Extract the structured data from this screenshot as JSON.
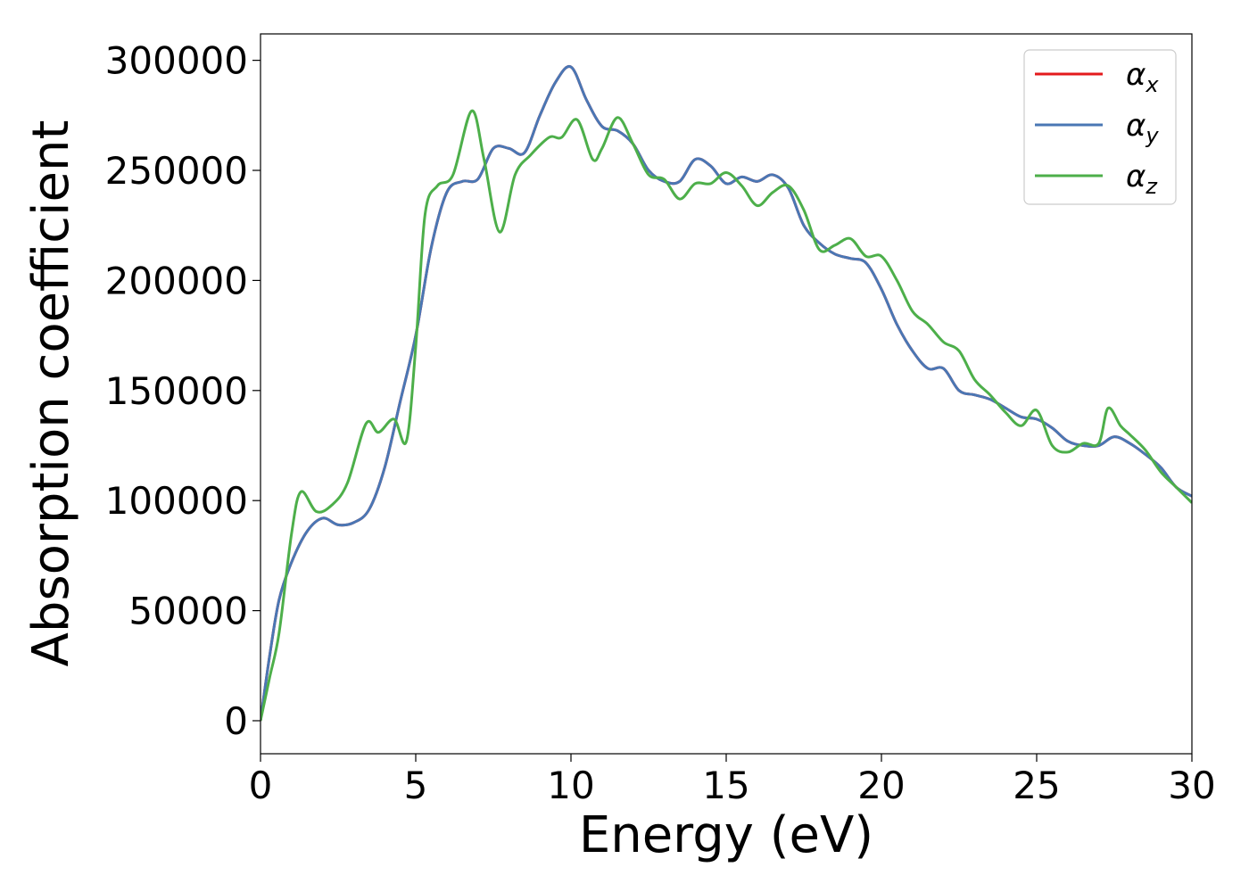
{
  "chart_data": {
    "type": "line",
    "xlabel": "Energy (eV)",
    "ylabel": "Absorption coefficient",
    "xlim": [
      0,
      30
    ],
    "ylim": [
      -15000,
      312000
    ],
    "xticks": [
      0,
      5,
      10,
      15,
      20,
      25,
      30
    ],
    "xtick_labels": [
      "0",
      "5",
      "10",
      "15",
      "20",
      "25",
      "30"
    ],
    "yticks": [
      0,
      50000,
      100000,
      150000,
      200000,
      250000,
      300000
    ],
    "ytick_labels": [
      "0",
      "50000",
      "100000",
      "150000",
      "200000",
      "250000",
      "300000"
    ],
    "grid": false,
    "legend_position": "top-right",
    "series": [
      {
        "name": "α_x",
        "legend_symbol": "α",
        "legend_subscript": "x",
        "color": "#e41a1c",
        "x": [
          0,
          0.3,
          0.6,
          1.0,
          1.5,
          2.0,
          2.5,
          3.0,
          3.5,
          4.0,
          4.5,
          5.0,
          5.5,
          6.0,
          6.5,
          7.0,
          7.5,
          8.0,
          8.5,
          9.0,
          9.5,
          10.0,
          10.5,
          11.0,
          11.5,
          12.0,
          12.5,
          13.0,
          13.5,
          14.0,
          14.5,
          15.0,
          15.5,
          16.0,
          16.5,
          17.0,
          17.5,
          18.0,
          18.5,
          19.0,
          19.5,
          20.0,
          20.5,
          21.0,
          21.5,
          22.0,
          22.5,
          23.0,
          23.5,
          24.0,
          24.5,
          25.0,
          25.5,
          26.0,
          26.5,
          27.0,
          27.5,
          28.0,
          28.5,
          29.0,
          29.5,
          30.0
        ],
        "y": [
          0,
          30000,
          55000,
          72000,
          86000,
          92000,
          89000,
          90000,
          96000,
          115000,
          145000,
          175000,
          215000,
          240000,
          245000,
          246000,
          260000,
          260000,
          258000,
          275000,
          290000,
          297000,
          282000,
          270000,
          268000,
          262000,
          250000,
          245000,
          245000,
          255000,
          252000,
          244000,
          247000,
          245000,
          248000,
          242000,
          225000,
          217000,
          212000,
          210000,
          208000,
          196000,
          180000,
          168000,
          160000,
          160000,
          150000,
          148000,
          146000,
          142000,
          138000,
          137000,
          133000,
          127000,
          125000,
          125000,
          129000,
          126000,
          121000,
          115000,
          106000,
          102000
        ]
      },
      {
        "name": "α_y",
        "legend_symbol": "α",
        "legend_subscript": "y",
        "color": "#4a77b4",
        "x": [
          0,
          0.3,
          0.6,
          1.0,
          1.5,
          2.0,
          2.5,
          3.0,
          3.5,
          4.0,
          4.5,
          5.0,
          5.5,
          6.0,
          6.5,
          7.0,
          7.5,
          8.0,
          8.5,
          9.0,
          9.5,
          10.0,
          10.5,
          11.0,
          11.5,
          12.0,
          12.5,
          13.0,
          13.5,
          14.0,
          14.5,
          15.0,
          15.5,
          16.0,
          16.5,
          17.0,
          17.5,
          18.0,
          18.5,
          19.0,
          19.5,
          20.0,
          20.5,
          21.0,
          21.5,
          22.0,
          22.5,
          23.0,
          23.5,
          24.0,
          24.5,
          25.0,
          25.5,
          26.0,
          26.5,
          27.0,
          27.5,
          28.0,
          28.5,
          29.0,
          29.5,
          30.0
        ],
        "y": [
          0,
          30000,
          55000,
          72000,
          86000,
          92000,
          89000,
          90000,
          96000,
          115000,
          145000,
          175000,
          215000,
          240000,
          245000,
          246000,
          260000,
          260000,
          258000,
          275000,
          290000,
          297000,
          282000,
          270000,
          268000,
          262000,
          250000,
          245000,
          245000,
          255000,
          252000,
          244000,
          247000,
          245000,
          248000,
          242000,
          225000,
          217000,
          212000,
          210000,
          208000,
          196000,
          180000,
          168000,
          160000,
          160000,
          150000,
          148000,
          146000,
          142000,
          138000,
          137000,
          133000,
          127000,
          125000,
          125000,
          129000,
          126000,
          121000,
          115000,
          106000,
          102000
        ]
      },
      {
        "name": "α_z",
        "legend_symbol": "α",
        "legend_subscript": "z",
        "color": "#4daf4a",
        "x": [
          0,
          0.3,
          0.6,
          1.0,
          1.3,
          1.8,
          2.3,
          2.8,
          3.4,
          3.8,
          4.3,
          4.7,
          5.0,
          5.3,
          5.7,
          6.2,
          6.8,
          7.2,
          7.7,
          8.2,
          8.7,
          9.3,
          9.7,
          10.2,
          10.7,
          11.0,
          11.5,
          12.0,
          12.5,
          13.0,
          13.5,
          14.0,
          14.5,
          15.0,
          15.5,
          16.0,
          16.5,
          17.0,
          17.5,
          18.0,
          18.5,
          19.0,
          19.5,
          20.0,
          20.5,
          21.0,
          21.5,
          22.0,
          22.5,
          23.0,
          23.5,
          24.0,
          24.5,
          25.0,
          25.5,
          26.0,
          26.5,
          27.0,
          27.3,
          27.7,
          28.0,
          28.5,
          29.0,
          29.5,
          30.0
        ],
        "y": [
          0,
          20000,
          40000,
          85000,
          104000,
          95000,
          98000,
          108000,
          135000,
          131000,
          137000,
          127000,
          170000,
          230000,
          243000,
          248000,
          277000,
          255000,
          222000,
          248000,
          257000,
          265000,
          265000,
          273000,
          255000,
          260000,
          274000,
          262000,
          248000,
          246000,
          237000,
          244000,
          244000,
          249000,
          243000,
          234000,
          240000,
          243000,
          232000,
          214000,
          216000,
          219000,
          211000,
          211000,
          200000,
          186000,
          180000,
          172000,
          168000,
          155000,
          148000,
          140000,
          134000,
          141000,
          125000,
          122000,
          126000,
          126000,
          142000,
          134000,
          130000,
          123000,
          113000,
          106000,
          99000
        ]
      }
    ]
  }
}
